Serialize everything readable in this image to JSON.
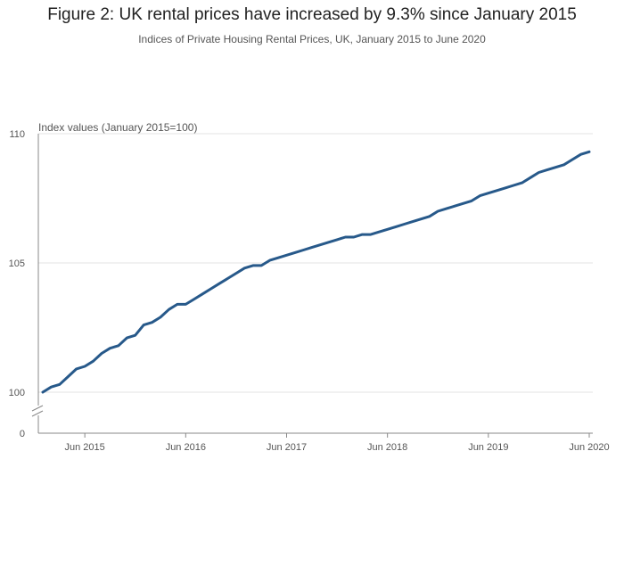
{
  "chart_data": {
    "type": "line",
    "title": "Figure 2: UK rental prices have increased by 9.3% since January 2015",
    "subtitle": "Indices of Private Housing Rental Prices, UK, January 2015 to June 2020",
    "ylabel": "Index values (January 2015=100)",
    "xlabel": "",
    "ylim": [
      100,
      110
    ],
    "y_axis_break": true,
    "y_ticks": [
      "110",
      "105",
      "100",
      "0"
    ],
    "x_ticks": [
      "Jun 2015",
      "Jun 2016",
      "Jun 2017",
      "Jun 2018",
      "Jun 2019",
      "Jun 2020"
    ],
    "grid": "horizontal",
    "line_color": "#27598a",
    "series": [
      {
        "values": [
          100.0,
          100.2,
          100.3,
          100.6,
          100.9,
          101.0,
          101.2,
          101.5,
          101.7,
          101.8,
          102.1,
          102.2,
          102.6,
          102.7,
          102.9,
          103.2,
          103.4,
          103.4,
          103.6,
          103.8,
          104.0,
          104.2,
          104.4,
          104.6,
          104.8,
          104.9,
          104.9,
          105.1,
          105.2,
          105.3,
          105.4,
          105.5,
          105.6,
          105.7,
          105.8,
          105.9,
          106.0,
          106.0,
          106.1,
          106.1,
          106.2,
          106.3,
          106.4,
          106.5,
          106.6,
          106.7,
          106.8,
          107.0,
          107.1,
          107.2,
          107.3,
          107.4,
          107.6,
          107.7,
          107.8,
          107.9,
          108.0,
          108.1,
          108.3,
          108.5,
          108.6,
          108.7,
          108.8,
          109.0,
          109.2,
          109.3
        ]
      }
    ],
    "x_start": "Jan 2015",
    "x_end": "Jun 2020",
    "frequency": "monthly"
  }
}
